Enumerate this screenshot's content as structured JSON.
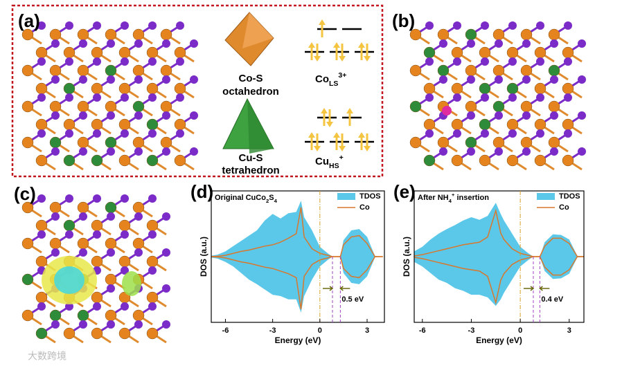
{
  "panels": {
    "a": "(a)",
    "b": "(b)",
    "c": "(c)"
  },
  "octahedron": [
    "Co-S",
    "octahedron"
  ],
  "tetrahedron": [
    "Cu-S",
    "tetrahedron"
  ],
  "co_ls": [
    {
      "t": "Co"
    },
    {
      "t": "LS",
      "sub": true
    },
    {
      "t": "3+",
      "sup": true
    }
  ],
  "cu_hs": [
    {
      "t": "Cu"
    },
    {
      "t": "HS",
      "sub": true
    },
    {
      "t": "+",
      "sup": true
    }
  ],
  "watermark": "大数跨境",
  "chart_data": [
    {
      "type": "area",
      "panel_label": "(d)",
      "title": [
        {
          "t": "Original CuCo"
        },
        {
          "t": "2",
          "sub": true
        },
        {
          "t": "S"
        },
        {
          "t": "4",
          "sub": true
        }
      ],
      "x_label": "Energy (eV)",
      "y_label": "DOS (a.u.)",
      "xlim": [
        -6.9,
        4.1
      ],
      "ylim": [
        -10,
        10
      ],
      "xticks": [
        -6,
        -3,
        0,
        3
      ],
      "x": [
        -7,
        -6.5,
        -6,
        -5.5,
        -5,
        -4.5,
        -4,
        -3.5,
        -3,
        -2.5,
        -2,
        -1.5,
        -1.2,
        -1,
        -0.5,
        0,
        0.5,
        0.8,
        1.3,
        1.5,
        2,
        2.5,
        3,
        3.5,
        4
      ],
      "series": [
        {
          "name": "TDOS",
          "color": "#5bc8ea",
          "values": [
            0.1,
            0.3,
            0.8,
            1.6,
            2.4,
            3.2,
            4,
            5.5,
            6.5,
            5.8,
            6.6,
            6.8,
            8.5,
            6,
            4,
            1.5,
            0.5,
            0,
            0,
            2.5,
            4,
            4.2,
            3,
            0.1,
            0
          ],
          "values_down": [
            -0.1,
            -0.3,
            -0.8,
            -1.5,
            -2.5,
            -3.5,
            -4.2,
            -5,
            -5.8,
            -6,
            -6.5,
            -6.5,
            -8.5,
            -6,
            -3.5,
            -1.5,
            -0.5,
            0,
            0,
            -2.5,
            -4,
            -4.2,
            -3,
            -0.1,
            0
          ]
        },
        {
          "name": "Co",
          "color": "#d9772b",
          "values": [
            0,
            0.05,
            0.2,
            0.5,
            0.8,
            1,
            1.3,
            1.6,
            1.8,
            2.2,
            2.8,
            3.5,
            7.5,
            3,
            1.2,
            0.5,
            0.2,
            0,
            0,
            1.8,
            3,
            3.2,
            2,
            0,
            0
          ],
          "values_down": [
            0,
            -0.05,
            -0.2,
            -0.5,
            -0.8,
            -1,
            -1.3,
            -1.6,
            -1.8,
            -2.2,
            -2.6,
            -3.2,
            -8,
            -3,
            -1.2,
            -0.5,
            -0.2,
            0,
            0,
            -1.8,
            -3,
            -3.2,
            -2,
            0,
            0
          ]
        }
      ],
      "fermi_level": 0,
      "gap_edges": [
        0.8,
        1.3
      ],
      "gap_label": "0.5 eV"
    },
    {
      "type": "area",
      "panel_label": "(e)",
      "title": [
        {
          "t": "After NH"
        },
        {
          "t": "4",
          "sub": true
        },
        {
          "t": "+",
          "sup": true
        },
        {
          "t": " insertion"
        }
      ],
      "x_label": "Energy (eV)",
      "y_label": "DOS (a.u.)",
      "xlim": [
        -6.5,
        3.9
      ],
      "ylim": [
        -10,
        10
      ],
      "xticks": [
        -6,
        -3,
        0,
        3
      ],
      "x": [
        -7,
        -6.5,
        -6,
        -5.5,
        -5,
        -4.5,
        -4,
        -3.5,
        -3,
        -2.5,
        -2,
        -1.5,
        -1.2,
        -1,
        -0.5,
        0,
        0.5,
        0.8,
        1.2,
        1.5,
        2,
        2.5,
        3,
        3.5,
        4
      ],
      "series": [
        {
          "name": "TDOS",
          "color": "#5bc8ea",
          "values": [
            0.3,
            0.8,
            1.5,
            2.6,
            3.5,
            4.2,
            4.8,
            5.5,
            6,
            5.6,
            6.2,
            8.2,
            6.5,
            5.5,
            3.5,
            1.5,
            0.5,
            0,
            0,
            2.2,
            3.4,
            3.3,
            2.6,
            0.1,
            0
          ],
          "values_down": [
            -0.3,
            -0.8,
            -1.5,
            -2.5,
            -3.5,
            -4,
            -4.8,
            -5.2,
            -5.8,
            -5.8,
            -6.2,
            -7.5,
            -6.5,
            -5.5,
            -3.5,
            -1.5,
            -0.5,
            0,
            0,
            -2.2,
            -3.4,
            -3.3,
            -2.6,
            -0.1,
            0
          ]
        },
        {
          "name": "Co",
          "color": "#d9772b",
          "values": [
            0,
            0.1,
            0.3,
            0.6,
            0.9,
            1.2,
            1.5,
            1.8,
            2,
            2.2,
            3,
            7,
            3.6,
            2.6,
            1.2,
            0.5,
            0.2,
            0,
            0,
            1.6,
            2.8,
            2.8,
            2,
            0,
            0
          ],
          "values_down": [
            0,
            -0.1,
            -0.3,
            -0.6,
            -0.9,
            -1.2,
            -1.5,
            -1.8,
            -2,
            -2.2,
            -3,
            -7,
            -3.6,
            -2.6,
            -1.2,
            -0.5,
            -0.2,
            0,
            0,
            -1.6,
            -2.8,
            -2.8,
            -2,
            0,
            0
          ]
        }
      ],
      "fermi_level": 0,
      "gap_edges": [
        0.8,
        1.2
      ],
      "gap_label": "0.4 eV"
    }
  ]
}
